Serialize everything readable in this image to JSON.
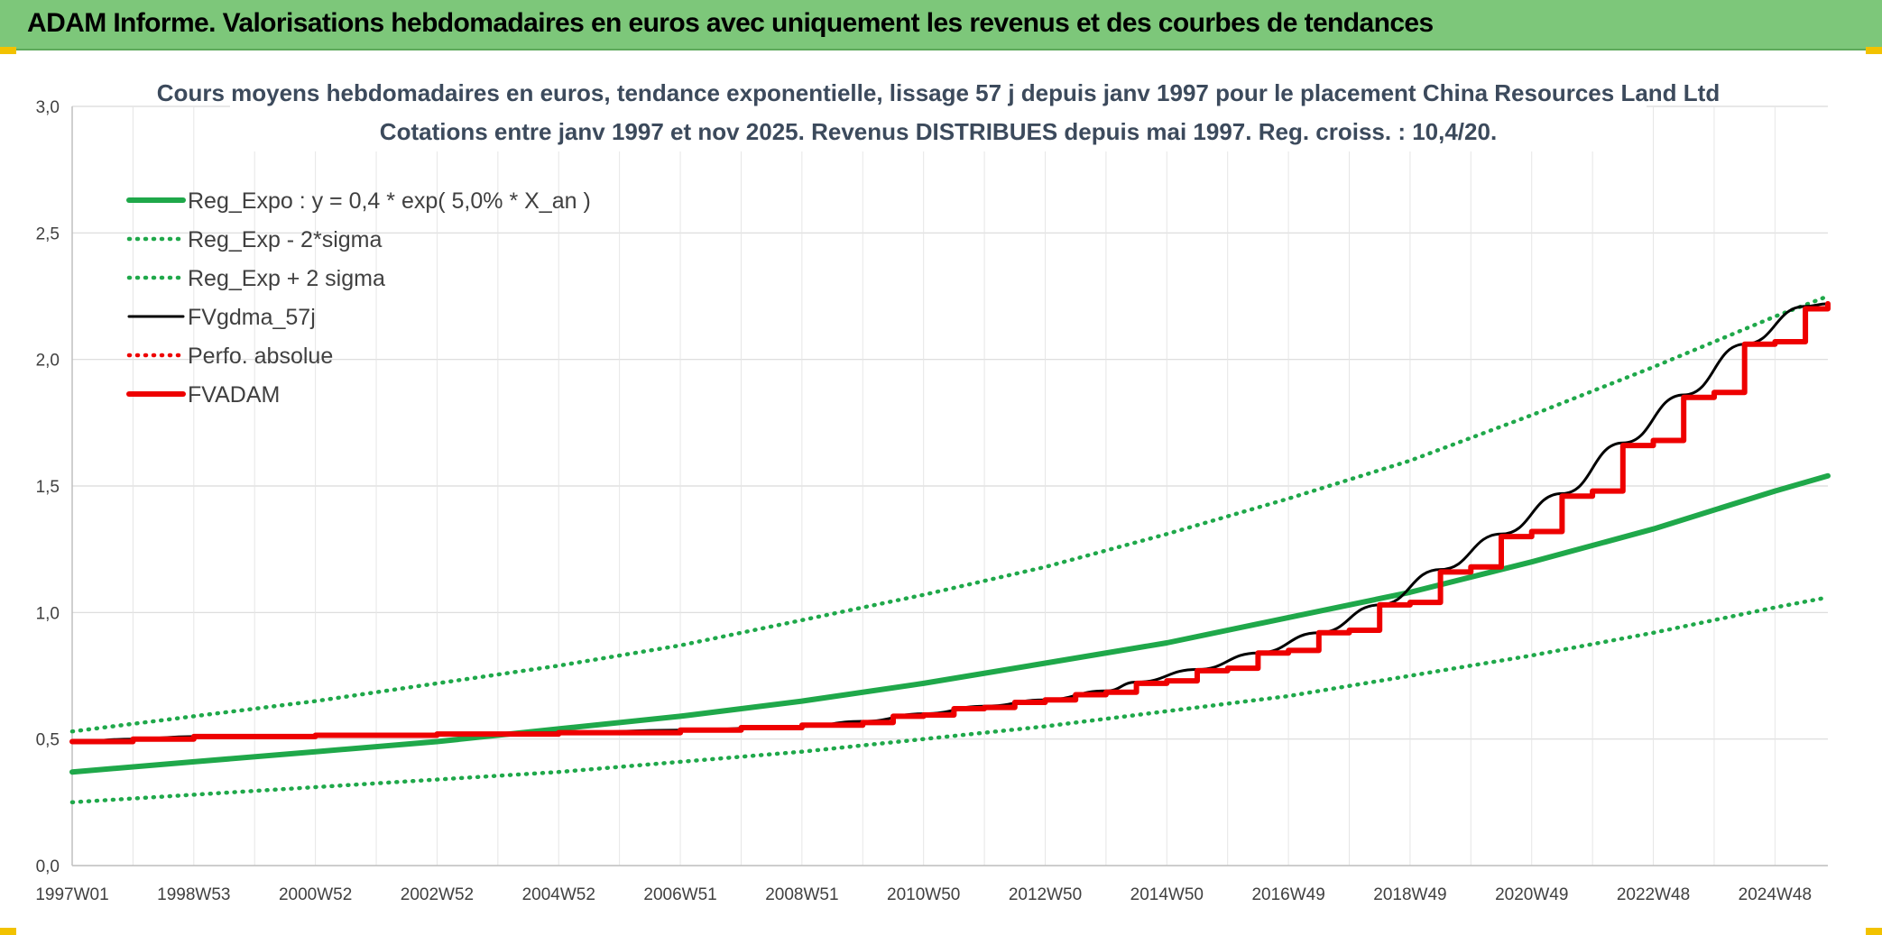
{
  "header": {
    "title": "ADAM Informe. Valorisations hebdomadaires en euros avec uniquement les revenus et des courbes de tendances"
  },
  "colors": {
    "header_bg": "#7dc77a",
    "green": "#1fa84a",
    "black": "#000000",
    "red": "#ee0000",
    "grid": "#d9d9d9",
    "accent_corner": "#f2c200"
  },
  "chart_data": {
    "type": "line",
    "title": "Cours moyens hebdomadaires en euros, tendance exponentielle, lissage 57 j depuis janv 1997 pour le placement China Resources Land Ltd",
    "subtitle": "Cotations entre janv 1997 et nov 2025. Revenus DISTRIBUES depuis mai 1997. Reg. croiss. : 10,4/20.",
    "xlabel": "",
    "ylabel": "",
    "x_range": [
      1997.0,
      2025.87
    ],
    "ylim": [
      0,
      3
    ],
    "y_ticks": [
      "0,0",
      "0,5",
      "1,0",
      "1,5",
      "2,0",
      "2,5",
      "3,0"
    ],
    "x_tick_labels": [
      "1997W01",
      "1998W53",
      "2000W52",
      "2002W52",
      "2004W52",
      "2006W51",
      "2008W51",
      "2010W50",
      "2012W50",
      "2014W50",
      "2016W49",
      "2018W49",
      "2020W49",
      "2022W48",
      "2024W48"
    ],
    "x_tick_years": [
      1997.0,
      1999.0,
      2001.0,
      2003.0,
      2005.0,
      2007.0,
      2009.0,
      2011.0,
      2013.0,
      2015.0,
      2017.0,
      2019.0,
      2021.0,
      2023.0,
      2025.0
    ],
    "grid": true,
    "legend_position": "top-left",
    "series": [
      {
        "name": "Reg_Expo : y = 0,4 * exp( 5,0% *  X_an )",
        "style": "solid-thick",
        "color": "#1fa84a",
        "x": [
          1997.0,
          1999.0,
          2001.0,
          2003.0,
          2005.0,
          2007.0,
          2009.0,
          2011.0,
          2013.0,
          2015.0,
          2017.0,
          2019.0,
          2021.0,
          2023.0,
          2025.0,
          2025.87
        ],
        "values": [
          0.37,
          0.41,
          0.45,
          0.49,
          0.54,
          0.59,
          0.65,
          0.72,
          0.8,
          0.88,
          0.98,
          1.08,
          1.2,
          1.33,
          1.48,
          1.54
        ]
      },
      {
        "name": "Reg_Exp - 2*sigma",
        "style": "dotted",
        "color": "#1fa84a",
        "x": [
          1997.0,
          1999.0,
          2001.0,
          2003.0,
          2005.0,
          2007.0,
          2009.0,
          2011.0,
          2013.0,
          2015.0,
          2017.0,
          2019.0,
          2021.0,
          2023.0,
          2025.0,
          2025.87
        ],
        "values": [
          0.25,
          0.28,
          0.31,
          0.34,
          0.37,
          0.41,
          0.45,
          0.5,
          0.55,
          0.61,
          0.67,
          0.75,
          0.83,
          0.92,
          1.02,
          1.06
        ]
      },
      {
        "name": "Reg_Exp + 2 sigma",
        "style": "dotted",
        "color": "#1fa84a",
        "x": [
          1997.0,
          1999.0,
          2001.0,
          2003.0,
          2005.0,
          2007.0,
          2009.0,
          2011.0,
          2013.0,
          2015.0,
          2017.0,
          2019.0,
          2021.0,
          2023.0,
          2025.0,
          2025.87
        ],
        "values": [
          0.53,
          0.59,
          0.65,
          0.72,
          0.79,
          0.87,
          0.97,
          1.07,
          1.18,
          1.31,
          1.45,
          1.6,
          1.78,
          1.97,
          2.17,
          2.25
        ]
      },
      {
        "name": "FVgdma_57j",
        "style": "solid-thin",
        "color": "#000000",
        "x": [
          1997.0,
          1998.0,
          1999.0,
          2001.0,
          2003.0,
          2005.0,
          2007.0,
          2009.0,
          2010.0,
          2011.0,
          2012.0,
          2013.0,
          2014.0,
          2014.5,
          2015.5,
          2016.5,
          2017.5,
          2018.5,
          2019.5,
          2020.5,
          2021.5,
          2022.5,
          2023.5,
          2024.5,
          2025.5,
          2025.87
        ],
        "values": [
          0.49,
          0.5,
          0.51,
          0.515,
          0.52,
          0.525,
          0.535,
          0.55,
          0.57,
          0.6,
          0.63,
          0.655,
          0.69,
          0.725,
          0.775,
          0.84,
          0.92,
          1.03,
          1.17,
          1.31,
          1.47,
          1.67,
          1.86,
          2.06,
          2.21,
          2.22
        ]
      },
      {
        "name": "Perfo. absolue",
        "style": "dotted",
        "color": "#ee0000",
        "x": [
          1997.0,
          2025.87
        ],
        "values": [
          0.49,
          2.22
        ]
      },
      {
        "name": "FVADAM",
        "style": "stepped-thick",
        "color": "#ee0000",
        "x": [
          1997.0,
          1998.0,
          1999.0,
          2001.0,
          2003.0,
          2005.0,
          2007.0,
          2008.0,
          2009.0,
          2010.0,
          2010.5,
          2011.0,
          2011.5,
          2012.0,
          2012.5,
          2013.0,
          2013.5,
          2014.0,
          2014.5,
          2015.0,
          2015.5,
          2016.0,
          2016.5,
          2017.0,
          2017.5,
          2018.0,
          2018.5,
          2019.0,
          2019.5,
          2020.0,
          2020.5,
          2021.0,
          2021.5,
          2022.0,
          2022.5,
          2023.0,
          2023.5,
          2024.0,
          2024.5,
          2025.0,
          2025.5,
          2025.87
        ],
        "values": [
          0.49,
          0.5,
          0.51,
          0.515,
          0.52,
          0.525,
          0.535,
          0.545,
          0.555,
          0.565,
          0.59,
          0.595,
          0.62,
          0.625,
          0.645,
          0.655,
          0.675,
          0.685,
          0.72,
          0.73,
          0.77,
          0.78,
          0.84,
          0.85,
          0.92,
          0.93,
          1.03,
          1.04,
          1.16,
          1.18,
          1.3,
          1.32,
          1.46,
          1.48,
          1.66,
          1.68,
          1.85,
          1.87,
          2.06,
          2.07,
          2.2,
          2.22
        ]
      }
    ]
  }
}
